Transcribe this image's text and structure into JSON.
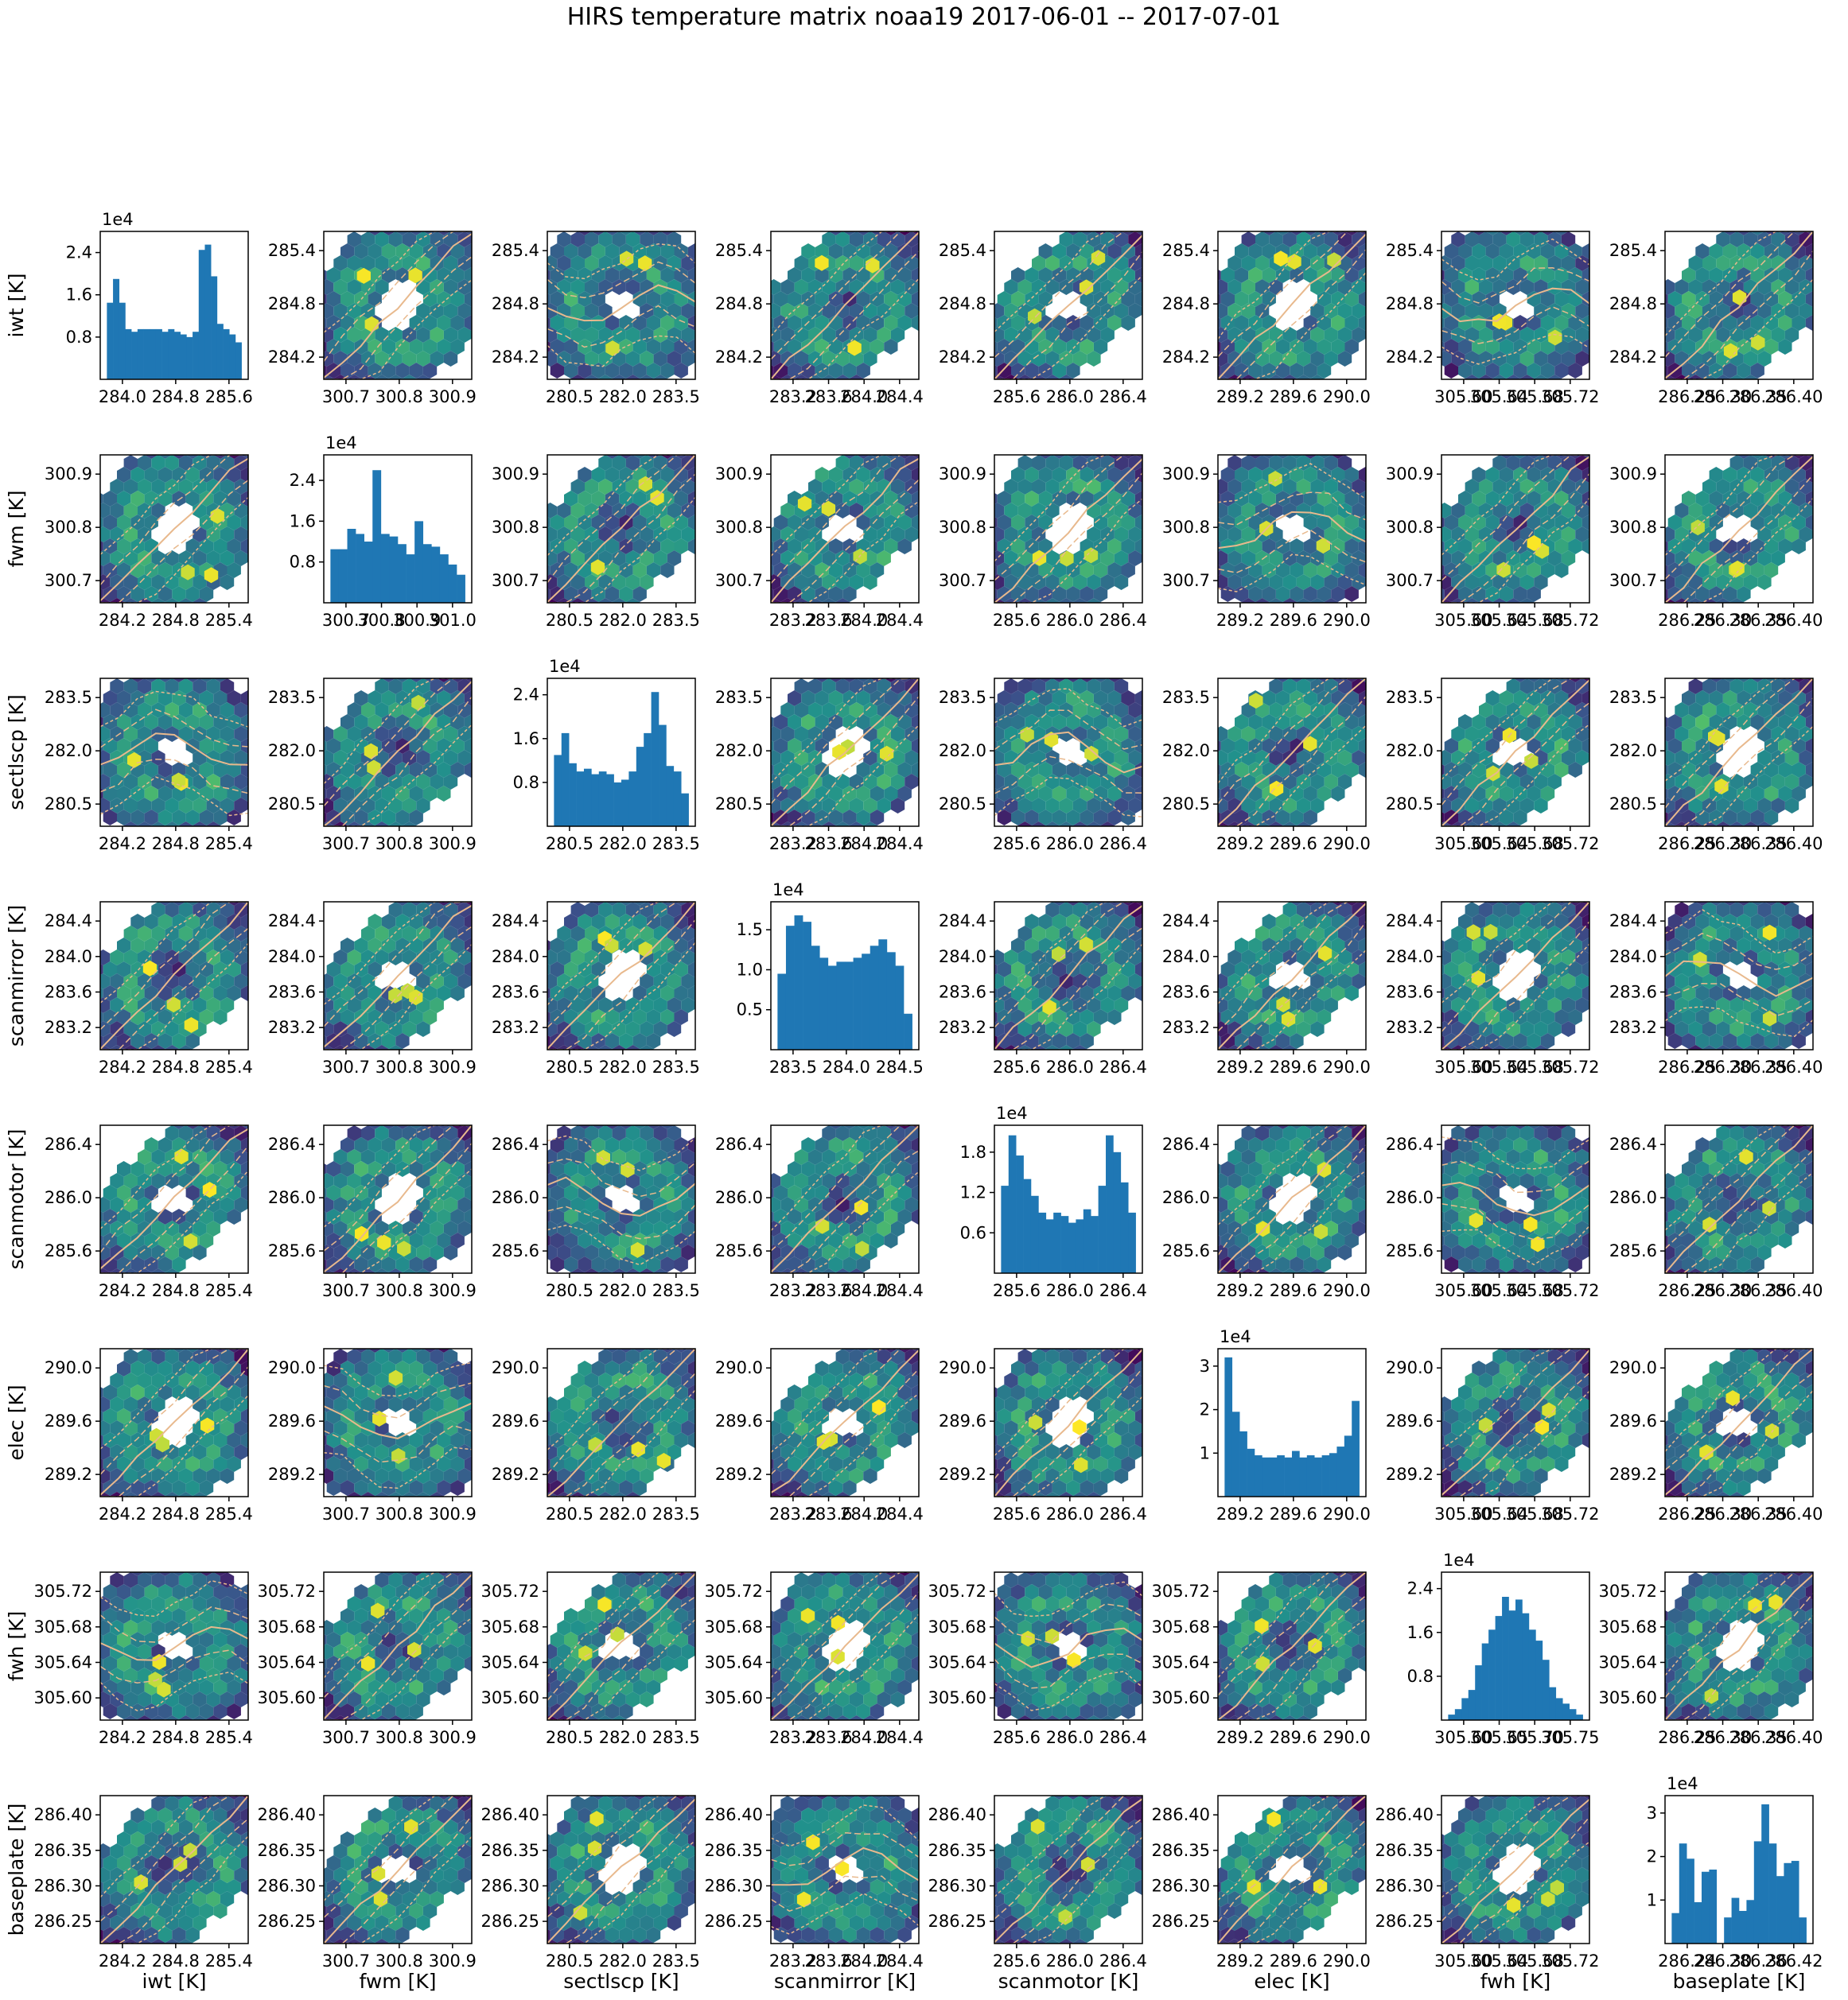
{
  "figure": {
    "title": "HIRS temperature matrix noaa19 2017-06-01 -- 2017-07-01",
    "offset_text": "1e4"
  },
  "colors": {
    "hist_bar": "#1f77b4",
    "median_line": "#e8b98d",
    "quantile_line": "#e8b98d",
    "range_line": "#e0704a",
    "hex_low": "#440154",
    "hex_mid": "#21918c",
    "hex_high": "#fde725"
  },
  "variables": [
    {
      "name": "iwt",
      "xlabel": "iwt [K]",
      "ylabel": "iwt [K]",
      "ticks": [
        "284.0",
        "284.8",
        "285.6"
      ],
      "scatter_ticks": [
        "284.2",
        "284.8",
        "285.4"
      ]
    },
    {
      "name": "fwm",
      "xlabel": "fwm [K]",
      "ylabel": "fwm [K]",
      "ticks": [
        "300.7",
        "300.8",
        "300.9",
        "301.0"
      ],
      "scatter_ticks": [
        "300.7",
        "300.8",
        "300.9"
      ]
    },
    {
      "name": "sectlscp",
      "xlabel": "sectlscp [K]",
      "ylabel": "sectlscp [K]",
      "ticks": [
        "280.5",
        "282.0",
        "283.5"
      ],
      "scatter_ticks": [
        "280.5",
        "282.0",
        "283.5"
      ]
    },
    {
      "name": "scanmirror",
      "xlabel": "scanmirror [K]",
      "ylabel": "scanmirror [K]",
      "ticks": [
        "283.5",
        "284.0",
        "284.5"
      ],
      "scatter_ticks": [
        "283.2",
        "283.6",
        "284.0",
        "284.4"
      ]
    },
    {
      "name": "scanmotor",
      "xlabel": "scanmotor [K]",
      "ylabel": "scanmotor [K]",
      "ticks": [
        "285.6",
        "286.0",
        "286.4"
      ],
      "scatter_ticks": [
        "285.6",
        "286.0",
        "286.4"
      ]
    },
    {
      "name": "elec",
      "xlabel": "elec [K]",
      "ylabel": "elec [K]",
      "ticks": [
        "289.2",
        "289.6",
        "290.0"
      ],
      "scatter_ticks": [
        "289.2",
        "289.6",
        "290.0"
      ]
    },
    {
      "name": "fwh",
      "xlabel": "fwh [K]",
      "ylabel": "fwh [K]",
      "ticks": [
        "305.60",
        "305.65",
        "305.70",
        "305.75"
      ],
      "scatter_ticks": [
        "305.60",
        "305.64",
        "305.68",
        "305.72"
      ]
    },
    {
      "name": "baseplate",
      "xlabel": "baseplate [K]",
      "ylabel": "baseplate [K]",
      "ticks": [
        "286.24",
        "286.30",
        "286.36",
        "286.42"
      ],
      "scatter_ticks": [
        "286.25",
        "286.30",
        "286.35",
        "286.40"
      ]
    }
  ],
  "chart_data": {
    "type": "heatmap",
    "title": "HIRS temperature matrix noaa19 2017-06-01 -- 2017-07-01",
    "description": "8x8 scatter matrix: off-diagonal panels are hexbin density plots with median/quantile lines, diagonal panels are histograms (counts, scale 1e4)",
    "histograms": [
      {
        "variable": "iwt",
        "ylim": [
          0,
          2.8
        ],
        "yticks": [
          "0.8",
          "1.6",
          "2.4"
        ],
        "values": [
          1.45,
          1.9,
          1.45,
          0.95,
          0.9,
          0.95,
          0.95,
          0.95,
          0.95,
          0.9,
          0.95,
          0.9,
          0.85,
          0.8,
          0.9,
          2.45,
          2.55,
          1.95,
          1.05,
          0.95,
          0.85,
          0.7
        ]
      },
      {
        "variable": "fwm",
        "ylim": [
          0,
          2.9
        ],
        "yticks": [
          "0.8",
          "1.6",
          "2.4"
        ],
        "values": [
          1.05,
          1.05,
          1.45,
          1.35,
          1.2,
          2.6,
          1.35,
          1.3,
          1.15,
          0.95,
          1.6,
          1.15,
          1.1,
          0.95,
          0.75,
          0.55
        ]
      },
      {
        "variable": "sectlscp",
        "ylim": [
          0,
          2.7
        ],
        "yticks": [
          "0.8",
          "1.6",
          "2.4"
        ],
        "values": [
          1.3,
          1.7,
          1.15,
          1.0,
          1.05,
          0.95,
          1.0,
          0.95,
          0.8,
          0.85,
          1.0,
          1.45,
          1.7,
          2.45,
          1.85,
          1.1,
          1.0,
          0.6
        ]
      },
      {
        "variable": "scanmirror",
        "ylim": [
          0,
          1.85
        ],
        "yticks": [
          "0.5",
          "1.0",
          "1.5"
        ],
        "values": [
          0.95,
          1.55,
          1.68,
          1.6,
          1.3,
          1.15,
          1.05,
          1.1,
          1.1,
          1.15,
          1.2,
          1.3,
          1.38,
          1.22,
          1.05,
          0.45
        ]
      },
      {
        "variable": "scanmotor",
        "ylim": [
          0,
          2.2
        ],
        "yticks": [
          "0.6",
          "1.2",
          "1.8"
        ],
        "values": [
          1.3,
          2.05,
          1.75,
          1.4,
          1.15,
          0.9,
          0.8,
          0.9,
          0.85,
          0.75,
          0.8,
          0.95,
          0.85,
          1.3,
          2.05,
          1.8,
          1.35,
          0.9
        ]
      },
      {
        "variable": "elec",
        "ylim": [
          0,
          3.4
        ],
        "yticks": [
          "1",
          "2",
          "3"
        ],
        "values": [
          3.2,
          1.95,
          1.5,
          1.1,
          0.95,
          0.9,
          0.9,
          0.95,
          0.9,
          1.05,
          0.9,
          0.95,
          0.9,
          0.95,
          1.0,
          1.15,
          1.4,
          2.2
        ]
      },
      {
        "variable": "fwh",
        "ylim": [
          0,
          2.7
        ],
        "yticks": [
          "0.8",
          "1.6",
          "2.4"
        ],
        "values": [
          0.1,
          0.2,
          0.4,
          0.55,
          1.0,
          1.4,
          1.65,
          1.9,
          2.25,
          2.0,
          2.2,
          1.95,
          1.65,
          1.45,
          1.1,
          0.6,
          0.4,
          0.3,
          0.2,
          0.1
        ]
      },
      {
        "variable": "baseplate",
        "ylim": [
          0,
          3.4
        ],
        "yticks": [
          "1",
          "2",
          "3"
        ],
        "values": [
          0.7,
          2.3,
          1.95,
          0.95,
          1.65,
          1.7,
          0,
          0.6,
          1.05,
          0.75,
          1.0,
          2.35,
          3.2,
          2.3,
          1.55,
          1.85,
          1.9,
          0.6
        ]
      }
    ]
  }
}
